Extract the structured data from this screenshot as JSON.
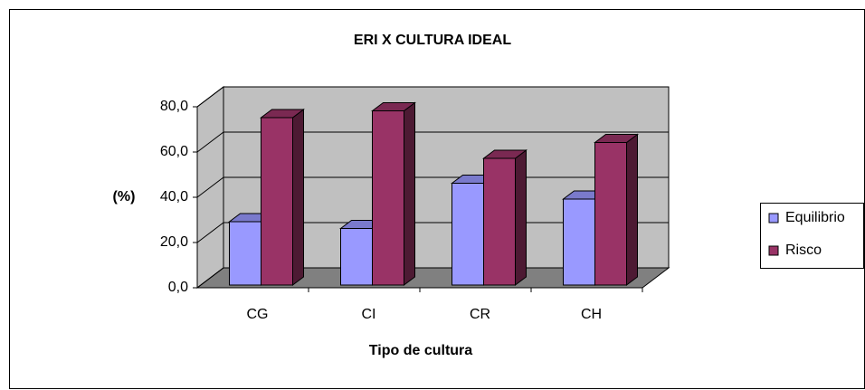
{
  "chart_data": {
    "type": "bar3d",
    "title": "ERI X CULTURA IDEAL",
    "x_label": "Tipo de cultura",
    "y_label": "(%)",
    "categories": [
      "CG",
      "CI",
      "CR",
      "CH"
    ],
    "series": [
      {
        "name": "Equilibrio",
        "color": "#9999ff",
        "values": [
          28,
          25,
          45,
          38
        ]
      },
      {
        "name": "Risco",
        "color": "#993366",
        "values": [
          74,
          77,
          56,
          63
        ]
      }
    ],
    "ylim": [
      0,
      80
    ],
    "yticks": [
      {
        "value": 0,
        "label": "0,0"
      },
      {
        "value": 20,
        "label": "20,0"
      },
      {
        "value": 40,
        "label": "40,0"
      },
      {
        "value": 60,
        "label": "60,0"
      },
      {
        "value": 80,
        "label": "80,0"
      }
    ],
    "grid": true,
    "legend": "right"
  }
}
